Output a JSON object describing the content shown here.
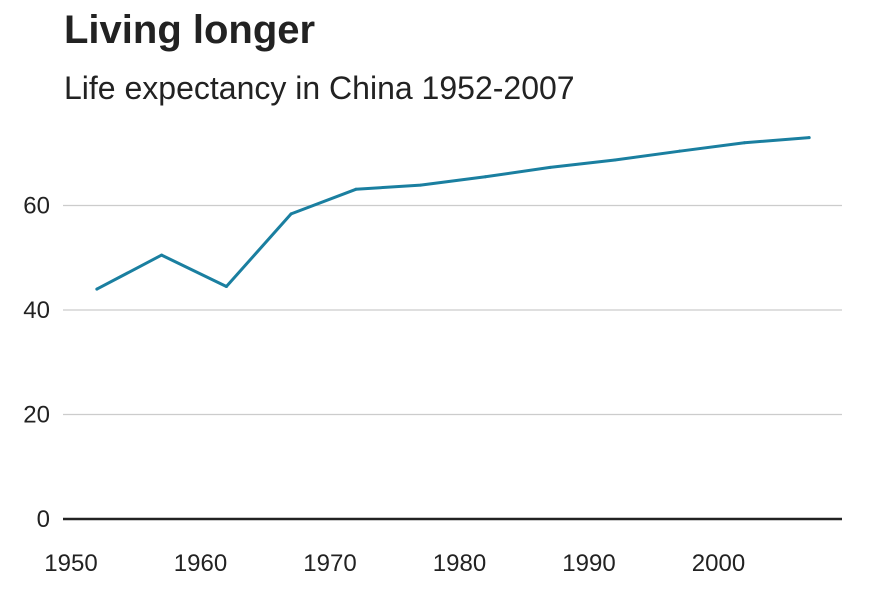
{
  "chart_data": {
    "type": "line",
    "title": "Living longer",
    "subtitle": "Life expectancy in China 1952-2007",
    "xlabel": "",
    "ylabel": "",
    "xlim": [
      1950,
      2010
    ],
    "ylim": [
      0,
      75
    ],
    "x_ticks": [
      1950,
      1960,
      1970,
      1980,
      1990,
      2000
    ],
    "y_ticks": [
      0,
      20,
      40,
      60
    ],
    "grid": true,
    "legend": "none",
    "series": [
      {
        "color": "#1a7fa0",
        "points": [
          {
            "x": 1952,
            "y": 44.0
          },
          {
            "x": 1957,
            "y": 50.5
          },
          {
            "x": 1962,
            "y": 44.5
          },
          {
            "x": 1967,
            "y": 58.4
          },
          {
            "x": 1972,
            "y": 63.1
          },
          {
            "x": 1977,
            "y": 63.9
          },
          {
            "x": 1982,
            "y": 65.5
          },
          {
            "x": 1987,
            "y": 67.3
          },
          {
            "x": 1992,
            "y": 68.7
          },
          {
            "x": 1997,
            "y": 70.4
          },
          {
            "x": 2002,
            "y": 72.0
          },
          {
            "x": 2007,
            "y": 73.0
          }
        ]
      }
    ]
  },
  "colors": {
    "series": "#1a7fa0",
    "grid": "#cccccc",
    "baseline": "#222222",
    "text": "#222222"
  }
}
